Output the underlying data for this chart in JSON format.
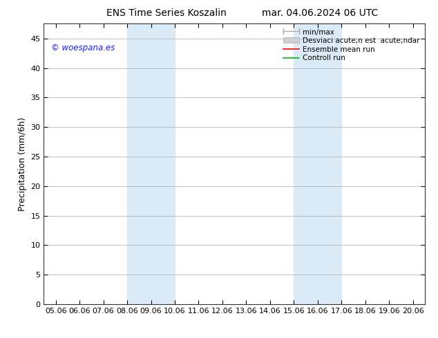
{
  "title_left": "ENS Time Series Koszalin",
  "title_right": "mar. 04.06.2024 06 UTC",
  "ylabel": "Precipitation (mm/6h)",
  "ylim": [
    0,
    47.5
  ],
  "yticks": [
    0,
    5,
    10,
    15,
    20,
    25,
    30,
    35,
    40,
    45
  ],
  "xtick_labels": [
    "05.06",
    "06.06",
    "07.06",
    "08.06",
    "09.06",
    "10.06",
    "11.06",
    "12.06",
    "13.06",
    "14.06",
    "15.06",
    "16.06",
    "17.06",
    "18.06",
    "19.06",
    "20.06"
  ],
  "xtick_positions": [
    0,
    1,
    2,
    3,
    4,
    5,
    6,
    7,
    8,
    9,
    10,
    11,
    12,
    13,
    14,
    15
  ],
  "shaded_bands": [
    {
      "x_start": 3,
      "x_end": 5,
      "color": "#daeaf7"
    },
    {
      "x_start": 10,
      "x_end": 12,
      "color": "#daeaf7"
    }
  ],
  "copyright_text": "© woespana.es",
  "copyright_color": "#1a1aff",
  "legend_labels": [
    "min/max",
    "Desviaci acute;n est  acute;ndar",
    "Ensemble mean run",
    "Controll run"
  ],
  "legend_colors": [
    "#aaaaaa",
    "#cccccc",
    "#ff0000",
    "#00bb00"
  ],
  "background_color": "#ffffff",
  "plot_bg_color": "#ffffff",
  "grid_color": "#aaaaaa",
  "title_fontsize": 10,
  "axis_label_fontsize": 9,
  "tick_fontsize": 8,
  "legend_fontsize": 7.5
}
